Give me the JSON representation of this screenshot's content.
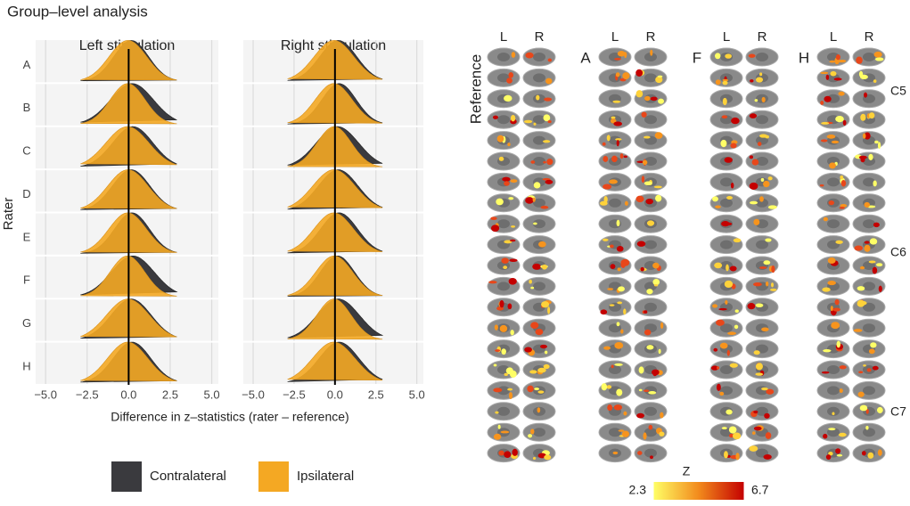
{
  "title": "Group–level analysis",
  "density": {
    "panels": [
      "Left stimulation",
      "Right stimulation"
    ],
    "raters": [
      "A",
      "B",
      "C",
      "D",
      "E",
      "F",
      "G",
      "H"
    ],
    "ylabel": "Rater",
    "xlabel": "Difference in z–statistics (rater – reference)",
    "xlim": [
      -5.6,
      5.4
    ],
    "xticks": [
      {
        "value": -5,
        "label": "−5.0"
      },
      {
        "value": -2.5,
        "label": "−2.5"
      },
      {
        "value": 0,
        "label": "0.0"
      },
      {
        "value": 2.5,
        "label": "2.5"
      },
      {
        "value": 5,
        "label": "5.0"
      }
    ],
    "legend": [
      {
        "name": "Contralateral",
        "color": "#3a3a3e"
      },
      {
        "name": "Ipsilateral",
        "color": "#f4a823"
      }
    ]
  },
  "slices": {
    "groups": [
      "Reference",
      "A",
      "F",
      "H"
    ],
    "columns": [
      "L",
      "R"
    ],
    "levels": [
      "C5",
      "C6",
      "C7"
    ],
    "colorbar_title": "Z",
    "zlim": [
      2.3,
      6.7
    ],
    "zticks": [
      2.3,
      6.7
    ]
  }
}
